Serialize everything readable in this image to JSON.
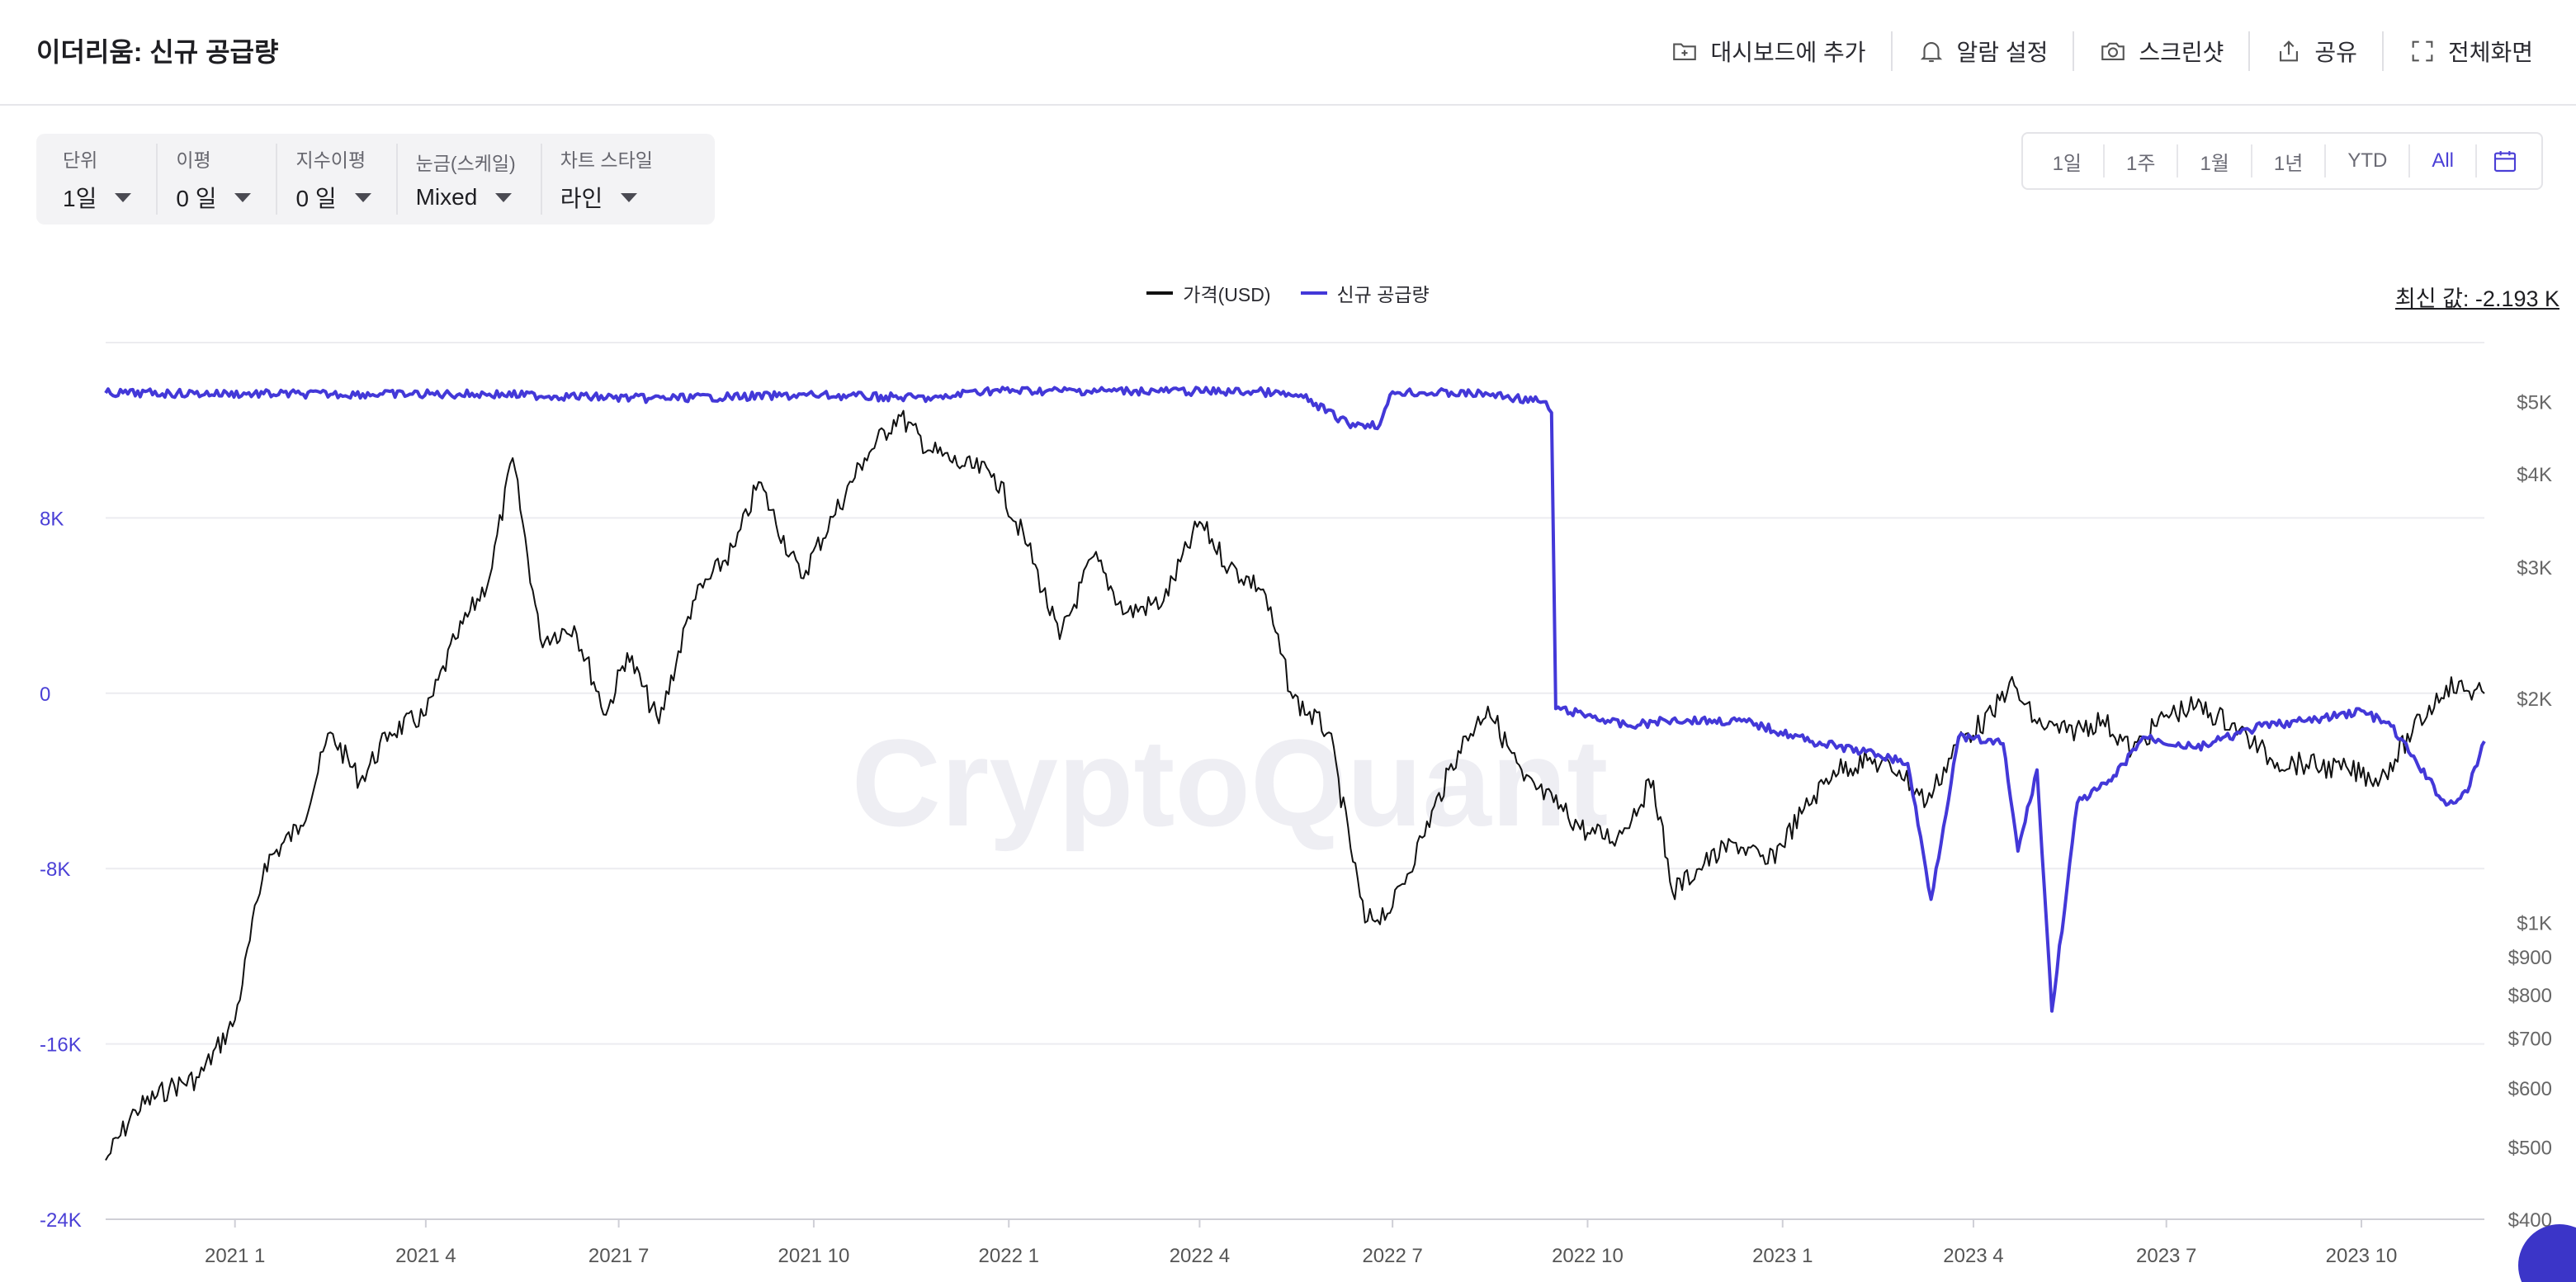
{
  "header": {
    "title": "이더리움: 신규 공급량",
    "actions": [
      {
        "label": "대시보드에 추가",
        "icon": "folder-plus-icon"
      },
      {
        "label": "알람 설정",
        "icon": "bell-icon"
      },
      {
        "label": "스크린샷",
        "icon": "camera-icon"
      },
      {
        "label": "공유",
        "icon": "share-icon"
      },
      {
        "label": "전체화면",
        "icon": "fullscreen-icon"
      }
    ]
  },
  "controls": [
    {
      "label": "단위",
      "value": "1일"
    },
    {
      "label": "이평",
      "value": "0 일"
    },
    {
      "label": "지수이평",
      "value": "0 일"
    },
    {
      "label": "눈금(스케일)",
      "value": "Mixed"
    },
    {
      "label": "차트 스타일",
      "value": "라인"
    }
  ],
  "range_buttons": [
    "1일",
    "1주",
    "1월",
    "1년",
    "YTD",
    "All"
  ],
  "range_active": "All",
  "latest_value": "최신 값: -2.193 K",
  "colors": {
    "accent": "#4a3fd6",
    "supply": "#4338d8",
    "price": "#111111",
    "grid": "#ececf0",
    "left_axis": "#4a3fd6"
  },
  "watermark": "CryptoQuant",
  "chart_data": {
    "type": "line",
    "title": "",
    "legend_placement": "top-center",
    "grid": true,
    "x_ticks": [
      "2021 1",
      "2021 4",
      "2021 7",
      "2021 10",
      "2022 1",
      "2022 4",
      "2022 7",
      "2022 10",
      "2023 1",
      "2023 4",
      "2023 7",
      "2023 10"
    ],
    "x_range": [
      "2020-11-01",
      "2023-11-28"
    ],
    "left_axis": {
      "series": "신규 공급량",
      "ticks": [
        "8K",
        "0",
        "-8K",
        "-16K",
        "-24K"
      ],
      "tick_values": [
        8000,
        0,
        -8000,
        -16000,
        -24000
      ],
      "range": [
        -24000,
        16000
      ]
    },
    "right_axis": {
      "series": "가격(USD)",
      "scale": "log",
      "ticks": [
        "$5K",
        "$4K",
        "$3K",
        "$2K",
        "$1K",
        "$900",
        "$800",
        "$700",
        "$600",
        "$500",
        "$400"
      ],
      "tick_values": [
        5000,
        4000,
        3000,
        2000,
        1000,
        900,
        800,
        700,
        600,
        500,
        400
      ],
      "range": [
        400,
        6000
      ]
    },
    "series": [
      {
        "name": "가격(USD)",
        "axis": "right",
        "points": [
          [
            "2020-11-01",
            480
          ],
          [
            "2020-11-15",
            560
          ],
          [
            "2020-12-01",
            600
          ],
          [
            "2020-12-15",
            620
          ],
          [
            "2021-01-01",
            740
          ],
          [
            "2021-01-15",
            1200
          ],
          [
            "2021-02-01",
            1350
          ],
          [
            "2021-02-15",
            1800
          ],
          [
            "2021-03-01",
            1550
          ],
          [
            "2021-03-15",
            1800
          ],
          [
            "2021-04-01",
            1900
          ],
          [
            "2021-04-15",
            2400
          ],
          [
            "2021-05-01",
            2900
          ],
          [
            "2021-05-12",
            4200
          ],
          [
            "2021-05-25",
            2400
          ],
          [
            "2021-06-10",
            2500
          ],
          [
            "2021-06-25",
            1900
          ],
          [
            "2021-07-05",
            2300
          ],
          [
            "2021-07-20",
            1850
          ],
          [
            "2021-08-05",
            2700
          ],
          [
            "2021-08-25",
            3200
          ],
          [
            "2021-09-05",
            3900
          ],
          [
            "2021-09-25",
            2900
          ],
          [
            "2021-10-10",
            3500
          ],
          [
            "2021-10-25",
            4200
          ],
          [
            "2021-11-10",
            4800
          ],
          [
            "2021-11-25",
            4300
          ],
          [
            "2021-12-10",
            4100
          ],
          [
            "2021-12-25",
            4000
          ],
          [
            "2022-01-10",
            3200
          ],
          [
            "2022-01-25",
            2400
          ],
          [
            "2022-02-10",
            3100
          ],
          [
            "2022-02-25",
            2600
          ],
          [
            "2022-03-15",
            2700
          ],
          [
            "2022-04-01",
            3450
          ],
          [
            "2022-04-15",
            3000
          ],
          [
            "2022-05-01",
            2800
          ],
          [
            "2022-05-15",
            2000
          ],
          [
            "2022-06-01",
            1800
          ],
          [
            "2022-06-18",
            1000
          ],
          [
            "2022-07-01",
            1050
          ],
          [
            "2022-07-15",
            1300
          ],
          [
            "2022-08-01",
            1700
          ],
          [
            "2022-08-15",
            1950
          ],
          [
            "2022-09-01",
            1550
          ],
          [
            "2022-09-15",
            1450
          ],
          [
            "2022-10-01",
            1320
          ],
          [
            "2022-10-15",
            1300
          ],
          [
            "2022-11-01",
            1550
          ],
          [
            "2022-11-10",
            1100
          ],
          [
            "2022-11-25",
            1200
          ],
          [
            "2022-12-10",
            1280
          ],
          [
            "2022-12-25",
            1200
          ],
          [
            "2023-01-10",
            1400
          ],
          [
            "2023-01-25",
            1600
          ],
          [
            "2023-02-10",
            1650
          ],
          [
            "2023-02-25",
            1600
          ],
          [
            "2023-03-10",
            1450
          ],
          [
            "2023-03-25",
            1750
          ],
          [
            "2023-04-10",
            1900
          ],
          [
            "2023-04-18",
            2100
          ],
          [
            "2023-05-01",
            1850
          ],
          [
            "2023-05-15",
            1800
          ],
          [
            "2023-06-01",
            1870
          ],
          [
            "2023-06-15",
            1700
          ],
          [
            "2023-07-01",
            1900
          ],
          [
            "2023-07-15",
            1950
          ],
          [
            "2023-08-01",
            1850
          ],
          [
            "2023-08-20",
            1650
          ],
          [
            "2023-09-05",
            1630
          ],
          [
            "2023-09-25",
            1600
          ],
          [
            "2023-10-10",
            1560
          ],
          [
            "2023-10-25",
            1800
          ],
          [
            "2023-11-10",
            2080
          ],
          [
            "2023-11-28",
            2030
          ]
        ]
      },
      {
        "name": "신규 공급량",
        "axis": "left",
        "points": [
          [
            "2020-11-01",
            13700
          ],
          [
            "2021-02-01",
            13650
          ],
          [
            "2021-05-01",
            13650
          ],
          [
            "2021-07-15",
            13450
          ],
          [
            "2021-10-01",
            13600
          ],
          [
            "2021-12-01",
            13450
          ],
          [
            "2021-12-15",
            13800
          ],
          [
            "2022-03-01",
            13800
          ],
          [
            "2022-05-01",
            13750
          ],
          [
            "2022-05-20",
            13500
          ],
          [
            "2022-06-10",
            12300
          ],
          [
            "2022-06-25",
            12250
          ],
          [
            "2022-07-01",
            13750
          ],
          [
            "2022-08-15",
            13650
          ],
          [
            "2022-09-10",
            13300
          ],
          [
            "2022-09-14",
            12800
          ],
          [
            "2022-09-16",
            -700
          ],
          [
            "2022-10-01",
            -1000
          ],
          [
            "2022-10-20",
            -1500
          ],
          [
            "2022-11-10",
            -1200
          ],
          [
            "2022-12-15",
            -1300
          ],
          [
            "2023-01-15",
            -2200
          ],
          [
            "2023-02-15",
            -2800
          ],
          [
            "2023-03-01",
            -3200
          ],
          [
            "2023-03-12",
            -9400
          ],
          [
            "2023-03-25",
            -2000
          ],
          [
            "2023-04-15",
            -2300
          ],
          [
            "2023-04-22",
            -7200
          ],
          [
            "2023-05-01",
            -3500
          ],
          [
            "2023-05-08",
            -14500
          ],
          [
            "2023-05-20",
            -5000
          ],
          [
            "2023-06-05",
            -4000
          ],
          [
            "2023-06-20",
            -2000
          ],
          [
            "2023-07-15",
            -2500
          ],
          [
            "2023-08-15",
            -1500
          ],
          [
            "2023-09-10",
            -1200
          ],
          [
            "2023-10-01",
            -800
          ],
          [
            "2023-10-15",
            -1500
          ],
          [
            "2023-11-10",
            -5100
          ],
          [
            "2023-11-20",
            -4500
          ],
          [
            "2023-11-28",
            -2193
          ]
        ]
      }
    ]
  }
}
